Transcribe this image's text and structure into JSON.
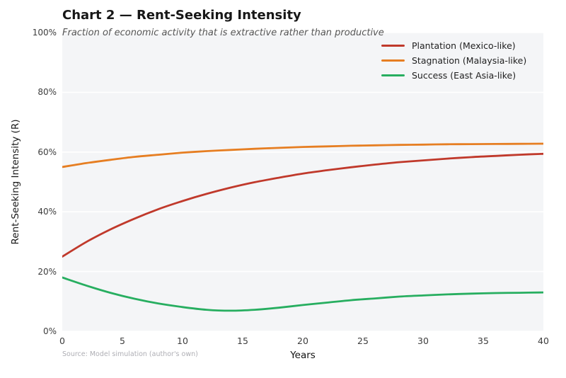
{
  "header": {
    "title": "Chart 2 — Rent-Seeking Intensity",
    "subtitle": "Fraction of economic activity that is extractive rather than productive"
  },
  "chart_data": {
    "type": "line",
    "title": "Chart 2 — Rent-Seeking Intensity",
    "subtitle": "Fraction of economic activity that is extractive rather than productive",
    "xlabel": "Years",
    "ylabel": "Rent-Seeking Intensity (R)",
    "xlim": [
      0,
      40
    ],
    "ylim": [
      0,
      100
    ],
    "grid": "horizontal, white on light panel",
    "legend_position": "top-right, no frame",
    "xticks": {
      "values": [
        0,
        5,
        10,
        15,
        20,
        25,
        30,
        35,
        40
      ],
      "labels": [
        "0",
        "5",
        "10",
        "15",
        "20",
        "25",
        "30",
        "35",
        "40"
      ]
    },
    "yticks": {
      "values": [
        0,
        20,
        40,
        60,
        80,
        100
      ],
      "labels": [
        "0%",
        "20%",
        "40%",
        "60%",
        "80%",
        "100%"
      ]
    },
    "x": [
      0,
      2,
      4,
      6,
      8,
      10,
      12,
      14,
      16,
      18,
      20,
      22,
      24,
      26,
      28,
      30,
      32,
      34,
      36,
      38,
      40
    ],
    "series": [
      {
        "name": "Plantation (Mexico-like)",
        "color": "#c0392b",
        "values": [
          25.0,
          29.9,
          34.1,
          37.7,
          40.9,
          43.6,
          46.0,
          48.1,
          49.9,
          51.4,
          52.8,
          53.9,
          54.9,
          55.8,
          56.6,
          57.2,
          57.8,
          58.3,
          58.7,
          59.1,
          59.4
        ]
      },
      {
        "name": "Stagnation (Malaysia-like)",
        "color": "#e67e22",
        "values": [
          55.0,
          56.3,
          57.4,
          58.4,
          59.1,
          59.8,
          60.3,
          60.7,
          61.1,
          61.4,
          61.7,
          61.9,
          62.1,
          62.25,
          62.4,
          62.5,
          62.6,
          62.65,
          62.7,
          62.75,
          62.8
        ]
      },
      {
        "name": "Success (East Asia-like)",
        "color": "#27ae60",
        "values": [
          18.0,
          15.3,
          12.9,
          10.9,
          9.3,
          8.1,
          7.2,
          6.9,
          7.2,
          7.9,
          8.8,
          9.6,
          10.4,
          11.0,
          11.6,
          12.0,
          12.35,
          12.6,
          12.8,
          12.9,
          13.0
        ]
      }
    ]
  },
  "footer": {
    "source": "Source: Model simulation (author's own)"
  },
  "colors": {
    "figure_bg": "#ffffff",
    "plot_bg": "#f4f5f7",
    "grid": "#ffffff",
    "tick": "#3d3d3d",
    "subtitle": "#555555",
    "source_note": "#aeaeb4"
  }
}
